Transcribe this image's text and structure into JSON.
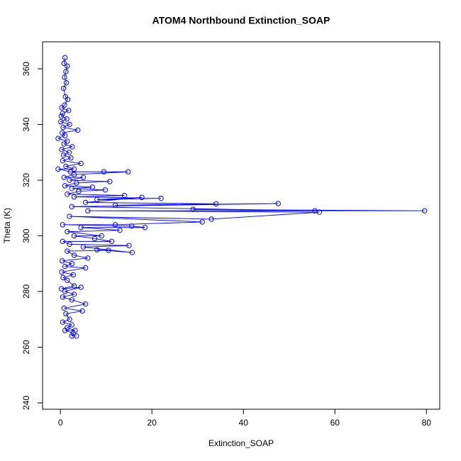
{
  "chart_data": {
    "type": "line",
    "marker": "open-circle",
    "title": "ATOM4 Northbound Extinction_SOAP",
    "x_label": "Extinction_SOAP",
    "y_label": "Theta (K)",
    "color": "#0000ff",
    "xlim": [
      -3.9,
      82.9
    ],
    "ylim": [
      237.7,
      369.7
    ],
    "xticks": [
      0,
      20,
      40,
      60,
      80
    ],
    "yticks": [
      240,
      260,
      280,
      300,
      320,
      340,
      360
    ],
    "x": [
      1.0,
      0.8,
      1.5,
      1.2,
      0.9,
      1.3,
      0.7,
      1.1,
      1.6,
      0.9,
      0.3,
      1.8,
      0.5,
      0.2,
      1.4,
      0.1,
      2.0,
      0.6,
      3.8,
      0.4,
      1.0,
      -0.5,
      1.5,
      0.8,
      2.6,
      0.3,
      1.9,
      0.7,
      2.3,
      0.5,
      4.5,
      1.2,
      3.0,
      -0.5,
      2.2,
      9.5,
      14.8,
      3.0,
      0.8,
      5.0,
      2.0,
      10.8,
      3.5,
      1.0,
      7.0,
      2.5,
      9.8,
      4.0,
      1.5,
      14.0,
      3.0,
      22.0,
      8.0,
      17.8,
      5.5,
      34.0,
      12.0,
      47.6,
      2.5,
      55.6,
      29.0,
      79.6,
      6.0,
      56.6,
      33.0,
      2.0,
      31.0,
      12.0,
      0.5,
      15.6,
      18.5,
      4.5,
      13.0,
      1.5,
      9.0,
      3.0,
      7.5,
      11.2,
      0.5,
      2.0,
      15.0,
      5.0,
      15.7,
      8.0,
      10.5,
      1.5,
      3.0,
      6.0,
      0.4,
      2.5,
      1.0,
      5.5,
      0.3,
      2.8,
      0.6,
      1.5,
      3.0,
      0.2,
      4.5,
      1.0,
      3.0,
      0.5,
      2.5,
      5.5,
      0.8,
      4.8,
      1.2,
      2.0,
      0.5,
      2.5,
      1.5,
      3.2,
      1.0,
      2.8,
      2.5,
      3.5
    ],
    "values": [
      364,
      362,
      361,
      359,
      357,
      355,
      353,
      350,
      349,
      347,
      346,
      345,
      344,
      343,
      342,
      341,
      340,
      339,
      338,
      337,
      336,
      335,
      334,
      333,
      332,
      331,
      330,
      329,
      328,
      327,
      326,
      325,
      324,
      324,
      323,
      323,
      323,
      322,
      321,
      321,
      320,
      319.5,
      319,
      318,
      317.5,
      317,
      316.5,
      316,
      315,
      314.5,
      314,
      313.5,
      313,
      313.8,
      312,
      311.5,
      311,
      311.6,
      310.5,
      309,
      309.5,
      309,
      309,
      308.5,
      306,
      307,
      305,
      304,
      304,
      303.5,
      303,
      303,
      302,
      301.5,
      300,
      300,
      299,
      298,
      298,
      297,
      296.5,
      296,
      294,
      295,
      294.8,
      294.5,
      293,
      292,
      291,
      290,
      289,
      288.5,
      287,
      286,
      285,
      284,
      282,
      281,
      281.5,
      280,
      279,
      278,
      277,
      275.5,
      274,
      273,
      272,
      270,
      269,
      268,
      267,
      266,
      266,
      265,
      264,
      264
    ]
  }
}
